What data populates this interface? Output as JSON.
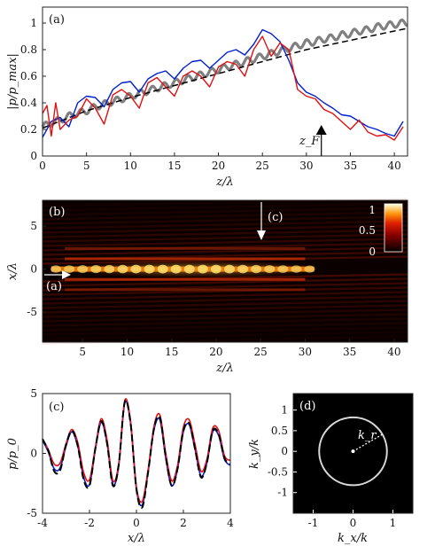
{
  "chart_data": [
    {
      "panel": "(a)",
      "type": "line",
      "xlabel": "z/λ",
      "ylabel": "|p/p_max|",
      "xlim": [
        0,
        41.5
      ],
      "ylim": [
        0,
        1.12
      ],
      "xticks": [
        "0",
        "5",
        "10",
        "15",
        "20",
        "25",
        "30",
        "35",
        "40"
      ],
      "yticks": [
        "0",
        "0.2",
        "0.4",
        "0.6",
        "0.8",
        "1"
      ],
      "annotation": "z_F",
      "annotation_x": 31.7,
      "series": [
        {
          "color": "#808080",
          "x": [
            0,
            1,
            2,
            3,
            4,
            5,
            6,
            7,
            8,
            9,
            10,
            11,
            12,
            13,
            14,
            15,
            16,
            17,
            18,
            19,
            20,
            21,
            22,
            23,
            24,
            25,
            26,
            27,
            28,
            29,
            30,
            31,
            32,
            33,
            34,
            35,
            36,
            37,
            38,
            39,
            40,
            41
          ],
          "values": [
            0.22,
            0.25,
            0.27,
            0.3,
            0.32,
            0.34,
            0.37,
            0.39,
            0.41,
            0.43,
            0.45,
            0.47,
            0.49,
            0.51,
            0.53,
            0.55,
            0.57,
            0.59,
            0.61,
            0.63,
            0.65,
            0.67,
            0.69,
            0.71,
            0.73,
            0.75,
            0.77,
            0.79,
            0.81,
            0.83,
            0.85,
            0.86,
            0.88,
            0.89,
            0.91,
            0.92,
            0.94,
            0.95,
            0.97,
            0.98,
            0.99,
            1.0
          ]
        },
        {
          "color": "#000000",
          "dashed": true,
          "x": [
            0,
            5,
            10,
            15,
            20,
            25,
            30,
            35,
            40,
            41.5
          ],
          "values": [
            0.21,
            0.34,
            0.44,
            0.53,
            0.62,
            0.71,
            0.8,
            0.87,
            0.94,
            0.96
          ]
        },
        {
          "color": "#0020d0",
          "x": [
            0,
            1,
            2,
            3,
            4,
            5,
            6,
            7,
            8,
            9,
            10,
            11,
            12,
            13,
            14,
            15,
            16,
            17,
            18,
            19,
            20,
            21,
            22,
            23,
            24,
            25,
            26,
            27,
            28,
            29,
            30,
            31,
            32,
            33,
            34,
            35,
            36,
            37,
            38,
            39,
            40,
            41
          ],
          "values": [
            0.14,
            0.26,
            0.29,
            0.22,
            0.4,
            0.45,
            0.44,
            0.37,
            0.5,
            0.55,
            0.56,
            0.48,
            0.58,
            0.62,
            0.64,
            0.58,
            0.66,
            0.71,
            0.72,
            0.66,
            0.72,
            0.78,
            0.8,
            0.76,
            0.84,
            0.95,
            0.92,
            0.86,
            0.72,
            0.55,
            0.48,
            0.45,
            0.4,
            0.36,
            0.31,
            0.3,
            0.26,
            0.22,
            0.2,
            0.17,
            0.15,
            0.26
          ]
        },
        {
          "color": "#e01010",
          "x": [
            0,
            0.5,
            1,
            1.5,
            2,
            3,
            4,
            5,
            6,
            7,
            8,
            9,
            10,
            11,
            12,
            13,
            14,
            15,
            16,
            17,
            18,
            19,
            20,
            21,
            22,
            23,
            24,
            25,
            26,
            27,
            28,
            29,
            30,
            31,
            32,
            33,
            34,
            35,
            36,
            37,
            38,
            39,
            40,
            41
          ],
          "values": [
            0.32,
            0.38,
            0.15,
            0.4,
            0.2,
            0.27,
            0.3,
            0.43,
            0.36,
            0.24,
            0.46,
            0.5,
            0.45,
            0.36,
            0.55,
            0.59,
            0.52,
            0.45,
            0.6,
            0.64,
            0.6,
            0.52,
            0.67,
            0.71,
            0.69,
            0.6,
            0.8,
            0.9,
            0.75,
            0.85,
            0.8,
            0.5,
            0.45,
            0.43,
            0.35,
            0.32,
            0.26,
            0.2,
            0.27,
            0.18,
            0.15,
            0.16,
            0.12,
            0.22
          ]
        }
      ]
    },
    {
      "panel": "(b)",
      "type": "heatmap",
      "xlabel": "z/λ",
      "ylabel": "x/λ",
      "xlim": [
        0.5,
        41.5
      ],
      "ylim": [
        -8.5,
        8
      ],
      "xticks": [
        "5",
        "10",
        "15",
        "20",
        "25",
        "30",
        "35",
        "40"
      ],
      "yticks": [
        "5",
        "0",
        "-5"
      ],
      "colorbar_ticks": [
        "1",
        "0.5",
        "0"
      ],
      "markers": [
        {
          "label": "(a)",
          "direction": "right",
          "z": 1.5,
          "x": 0
        },
        {
          "label": "(c)",
          "direction": "down",
          "z": 25,
          "x": 5
        }
      ]
    },
    {
      "panel": "(c)",
      "type": "line",
      "xlabel": "x/λ",
      "ylabel": "p/p_0",
      "xlim": [
        -4,
        4
      ],
      "ylim": [
        -5,
        5
      ],
      "xticks": [
        "-4",
        "-2",
        "0",
        "2",
        "4"
      ],
      "yticks": [
        "5",
        "0",
        "-5"
      ],
      "series": [
        {
          "color": "#0020d0",
          "x": [
            -4,
            -3.75,
            -3.5,
            -3.25,
            -3,
            -2.75,
            -2.5,
            -2.25,
            -2,
            -1.75,
            -1.5,
            -1.25,
            -1,
            -0.75,
            -0.5,
            -0.25,
            0,
            0.25,
            0.5,
            0.75,
            1,
            1.25,
            1.5,
            1.75,
            2,
            2.25,
            2.5,
            2.75,
            3,
            3.25,
            3.5,
            3.75,
            4
          ],
          "values": [
            1.1,
            0.1,
            -1.3,
            -1.2,
            0.6,
            1.8,
            0.6,
            -2.0,
            -2.6,
            0.3,
            2.6,
            0.8,
            -2.6,
            -1.0,
            4.2,
            2.5,
            -3.0,
            -4.3,
            -1.5,
            2.0,
            2.8,
            -0.4,
            -2.7,
            -1.3,
            1.8,
            2.4,
            0.3,
            -1.9,
            -0.8,
            1.8,
            1.5,
            -0.5,
            -1.0
          ]
        },
        {
          "color": "#e01010",
          "x": [
            -4,
            -3.75,
            -3.5,
            -3.25,
            -3,
            -2.75,
            -2.5,
            -2.25,
            -2,
            -1.75,
            -1.5,
            -1.25,
            -1,
            -0.75,
            -0.5,
            -0.25,
            0,
            0.25,
            0.5,
            0.75,
            1,
            1.25,
            1.5,
            1.75,
            2,
            2.25,
            2.5,
            2.75,
            3,
            3.25,
            3.5,
            3.75,
            4
          ],
          "values": [
            1.2,
            0.3,
            -0.9,
            -0.8,
            0.8,
            2.0,
            0.9,
            -1.6,
            -2.2,
            0.5,
            2.9,
            1.1,
            -2.3,
            -0.8,
            4.4,
            2.7,
            -2.8,
            -4.0,
            -1.3,
            2.3,
            3.2,
            0.0,
            -2.3,
            -1.0,
            2.2,
            2.8,
            0.7,
            -1.5,
            -0.5,
            2.1,
            1.9,
            -0.2,
            -0.6
          ]
        },
        {
          "color": "#000000",
          "dashed": true,
          "x": [
            -4,
            -3.75,
            -3.5,
            -3.25,
            -3,
            -2.75,
            -2.5,
            -2.25,
            -2,
            -1.75,
            -1.5,
            -1.25,
            -1,
            -0.75,
            -0.5,
            -0.25,
            0,
            0.25,
            0.5,
            0.75,
            1,
            1.25,
            1.5,
            1.75,
            2,
            2.25,
            2.5,
            2.75,
            3,
            3.25,
            3.5,
            3.75,
            4
          ],
          "values": [
            1.2,
            0.2,
            -1.5,
            -1.4,
            0.7,
            1.9,
            0.6,
            -2.2,
            -2.7,
            0.4,
            2.7,
            0.8,
            -2.7,
            -0.9,
            4.3,
            2.5,
            -3.0,
            -4.5,
            -1.5,
            2.1,
            3.0,
            -0.3,
            -2.7,
            -1.3,
            1.9,
            2.5,
            0.3,
            -2.0,
            -0.8,
            1.9,
            1.6,
            -0.4,
            -0.9
          ]
        }
      ]
    },
    {
      "panel": "(d)",
      "type": "heatmap",
      "xlabel": "k_x/k",
      "ylabel": "k_y/k",
      "xlim": [
        -1.5,
        1.5
      ],
      "ylim": [
        -1.5,
        1.4
      ],
      "xticks": [
        "-1",
        "0",
        "1"
      ],
      "yticks": [
        "1",
        "0.5",
        "0",
        "-0.5",
        "-1"
      ],
      "ring_radius": 0.85,
      "annotation": "k_r"
    }
  ]
}
